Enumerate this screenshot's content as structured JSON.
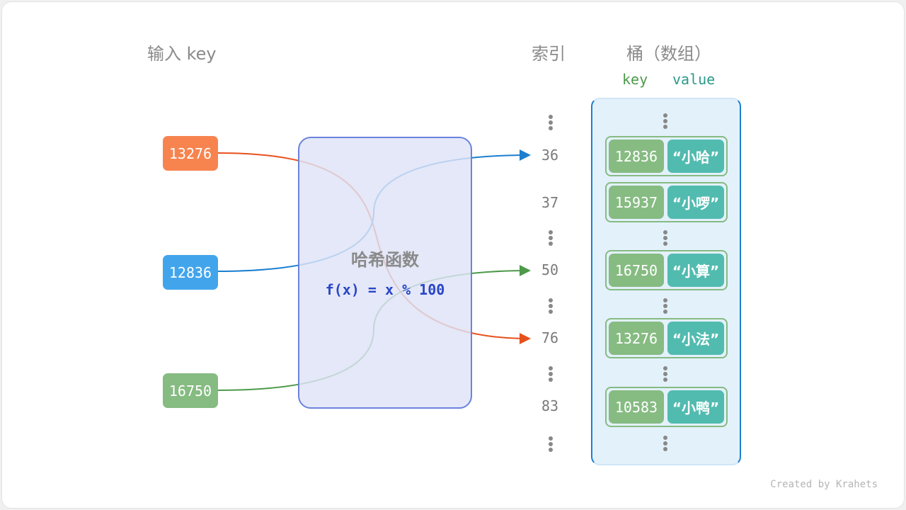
{
  "headers": {
    "input": "输入 key",
    "index": "索引",
    "bucket": "桶（数组）",
    "col_key": "key",
    "col_value": "value"
  },
  "inputs": [
    {
      "key": "13276",
      "color": "#f7844f",
      "line_color": "#e8501b",
      "target_index": "76"
    },
    {
      "key": "12836",
      "color": "#42a5ec",
      "line_color": "#1b7fd0",
      "target_index": "36"
    },
    {
      "key": "16750",
      "color": "#86bb82",
      "line_color": "#4c9a4a",
      "target_index": "50"
    }
  ],
  "hash_function": {
    "title": "哈希函数",
    "formula": "f(x) = x % 100"
  },
  "indices": [
    "36",
    "37",
    "50",
    "76",
    "83"
  ],
  "buckets": [
    {
      "key": "12836",
      "value": "“小哈”"
    },
    {
      "key": "15937",
      "value": "“小啰”"
    },
    {
      "key": "16750",
      "value": "“小算”"
    },
    {
      "key": "13276",
      "value": "“小法”"
    },
    {
      "key": "10583",
      "value": "“小鸭”"
    }
  ],
  "credit": "Created by Krahets"
}
